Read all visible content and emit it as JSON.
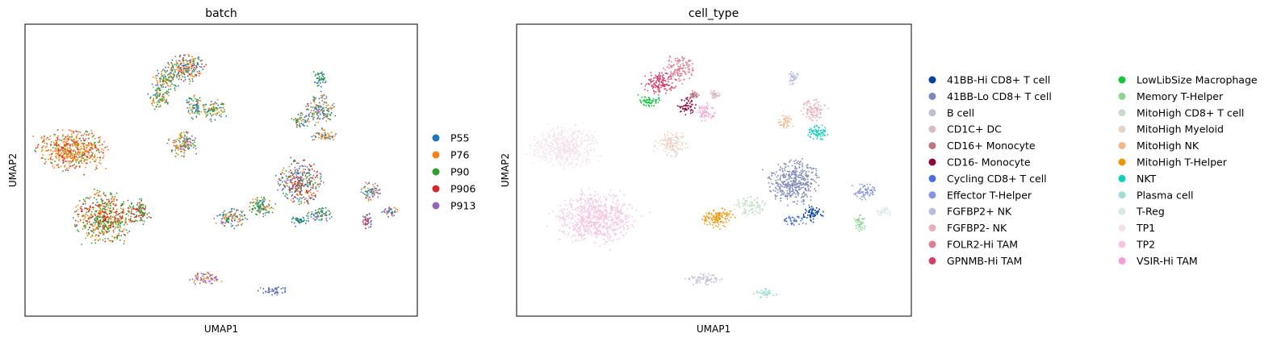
{
  "chart_data": [
    {
      "type": "scatter",
      "title": "batch",
      "xlabel": "UMAP1",
      "ylabel": "UMAP2",
      "xlim": [
        0,
        100
      ],
      "ylim": [
        0,
        100
      ],
      "grid": false,
      "ticks": false,
      "legend_placement": "right",
      "legend": [
        {
          "name": "P55",
          "color": "#1f77b4"
        },
        {
          "name": "P76",
          "color": "#ff7f0e"
        },
        {
          "name": "P90",
          "color": "#2ca02c"
        },
        {
          "name": "P906",
          "color": "#d62728"
        },
        {
          "name": "P913",
          "color": "#9467bd"
        }
      ],
      "clusters": [
        {
          "cx": 41,
          "cy": 85,
          "rx": 4.5,
          "ry": 4.5,
          "colors": [
            "#ff7f0e",
            "#2ca02c",
            "#1f77b4",
            "#d62728"
          ]
        },
        {
          "cx": 36,
          "cy": 81,
          "rx": 3.0,
          "ry": 4.0,
          "colors": [
            "#1f77b4",
            "#ff7f0e",
            "#2ca02c"
          ]
        },
        {
          "cx": 34,
          "cy": 75,
          "rx": 2.8,
          "ry": 2.8,
          "colors": [
            "#2ca02c",
            "#ff7f0e",
            "#1f77b4"
          ]
        },
        {
          "cx": 43,
          "cy": 72,
          "rx": 2.2,
          "ry": 3.5,
          "colors": [
            "#2ca02c",
            "#ff7f0e",
            "#1f77b4"
          ]
        },
        {
          "cx": 48,
          "cy": 71,
          "rx": 2.5,
          "ry": 3.5,
          "colors": [
            "#ff7f0e",
            "#2ca02c",
            "#1f77b4"
          ]
        },
        {
          "cx": 40,
          "cy": 59,
          "rx": 3.5,
          "ry": 4.0,
          "colors": [
            "#ff7f0e",
            "#2ca02c",
            "#9467bd"
          ]
        },
        {
          "cx": 12,
          "cy": 57,
          "rx": 8.5,
          "ry": 6.5,
          "colors": [
            "#ff7f0e",
            "#ff7f0e",
            "#ff7f0e",
            "#2ca02c",
            "#d62728"
          ]
        },
        {
          "cx": 20,
          "cy": 34,
          "rx": 7.0,
          "ry": 8.0,
          "colors": [
            "#2ca02c",
            "#2ca02c",
            "#ff7f0e",
            "#d62728"
          ]
        },
        {
          "cx": 29,
          "cy": 36,
          "rx": 2.5,
          "ry": 4.0,
          "colors": [
            "#d62728",
            "#2ca02c"
          ]
        },
        {
          "cx": 52,
          "cy": 34,
          "rx": 4.0,
          "ry": 3.0,
          "colors": [
            "#2ca02c",
            "#1f77b4",
            "#ff7f0e",
            "#9467bd"
          ]
        },
        {
          "cx": 60,
          "cy": 38,
          "rx": 3.5,
          "ry": 3.0,
          "colors": [
            "#1f77b4",
            "#ff7f0e",
            "#2ca02c"
          ]
        },
        {
          "cx": 70,
          "cy": 46,
          "rx": 5.0,
          "ry": 7.0,
          "colors": [
            "#1f77b4",
            "#ff7f0e",
            "#2ca02c",
            "#9467bd",
            "#d62728"
          ]
        },
        {
          "cx": 75,
          "cy": 82,
          "rx": 1.5,
          "ry": 3.0,
          "colors": [
            "#2ca02c",
            "#1f77b4"
          ]
        },
        {
          "cx": 75,
          "cy": 71,
          "rx": 3.5,
          "ry": 4.5,
          "colors": [
            "#ff7f0e",
            "#1f77b4",
            "#2ca02c",
            "#9467bd"
          ]
        },
        {
          "cx": 70,
          "cy": 67,
          "rx": 2.0,
          "ry": 2.5,
          "colors": [
            "#1f77b4",
            "#2ca02c",
            "#ff7f0e"
          ]
        },
        {
          "cx": 76,
          "cy": 62,
          "rx": 3.0,
          "ry": 2.0,
          "colors": [
            "#1f77b4",
            "#ff7f0e"
          ]
        },
        {
          "cx": 75,
          "cy": 35,
          "rx": 3.0,
          "ry": 2.5,
          "colors": [
            "#1f77b4",
            "#9467bd",
            "#2ca02c"
          ]
        },
        {
          "cx": 70,
          "cy": 33,
          "rx": 2.0,
          "ry": 1.5,
          "colors": [
            "#1f77b4",
            "#2ca02c"
          ]
        },
        {
          "cx": 88,
          "cy": 43,
          "rx": 2.5,
          "ry": 3.0,
          "colors": [
            "#1f77b4",
            "#2ca02c",
            "#9467bd",
            "#ff7f0e"
          ]
        },
        {
          "cx": 93,
          "cy": 36,
          "rx": 2.0,
          "ry": 1.5,
          "colors": [
            "#ff7f0e",
            "#1f77b4",
            "#9467bd"
          ]
        },
        {
          "cx": 87,
          "cy": 33,
          "rx": 1.2,
          "ry": 3.0,
          "colors": [
            "#d62728",
            "#9467bd",
            "#1f77b4"
          ]
        },
        {
          "cx": 46,
          "cy": 13,
          "rx": 4.0,
          "ry": 1.8,
          "colors": [
            "#9467bd",
            "#9467bd",
            "#ff7f0e"
          ]
        },
        {
          "cx": 63,
          "cy": 9,
          "rx": 3.0,
          "ry": 1.5,
          "colors": [
            "#9467bd",
            "#1f77b4"
          ]
        }
      ]
    },
    {
      "type": "scatter",
      "title": "cell_type",
      "xlabel": "UMAP1",
      "ylabel": "UMAP2",
      "xlim": [
        0,
        100
      ],
      "ylim": [
        0,
        100
      ],
      "grid": false,
      "ticks": false,
      "legend_placement": "right",
      "legend_columns": 2,
      "legend": [
        {
          "name": "41BB-Hi CD8+ T cell",
          "color": "#023fa5"
        },
        {
          "name": "41BB-Lo CD8+ T cell",
          "color": "#7d87b9"
        },
        {
          "name": "B cell",
          "color": "#bec1d4"
        },
        {
          "name": "CD1C+ DC",
          "color": "#d6bcc0"
        },
        {
          "name": "CD16+ Monocyte",
          "color": "#bb7784"
        },
        {
          "name": "CD16- Monocyte",
          "color": "#8e063b"
        },
        {
          "name": "Cycling CD8+ T cell",
          "color": "#4a6fe3"
        },
        {
          "name": "Effector T-Helper",
          "color": "#8595e1"
        },
        {
          "name": "FGFBP2+ NK",
          "color": "#b5bbe3"
        },
        {
          "name": "FGFBP2- NK",
          "color": "#e6afb9"
        },
        {
          "name": "FOLR2-Hi TAM",
          "color": "#e07b91"
        },
        {
          "name": "GPNMB-Hi TAM",
          "color": "#d33f6a"
        },
        {
          "name": "LowLibSize Macrophage",
          "color": "#11c638"
        },
        {
          "name": "Memory T-Helper",
          "color": "#8dd593"
        },
        {
          "name": "MitoHigh CD8+ T cell",
          "color": "#c6dec7"
        },
        {
          "name": "MitoHigh Myeloid",
          "color": "#ead3c6"
        },
        {
          "name": "MitoHigh NK",
          "color": "#f0b98d"
        },
        {
          "name": "MitoHigh T-Helper",
          "color": "#ef9708"
        },
        {
          "name": "NKT",
          "color": "#0fcfc0"
        },
        {
          "name": "Plasma cell",
          "color": "#9cded6"
        },
        {
          "name": "T-Reg",
          "color": "#d5eae7"
        },
        {
          "name": "TP1",
          "color": "#f3e1eb"
        },
        {
          "name": "TP2",
          "color": "#f6c4e1"
        },
        {
          "name": "VSIR-Hi TAM",
          "color": "#f79cd4"
        }
      ],
      "clusters": [
        {
          "cx": 41,
          "cy": 85,
          "rx": 3.5,
          "ry": 4.0,
          "colors": [
            "#e07b91"
          ]
        },
        {
          "cx": 36,
          "cy": 80,
          "rx": 4.0,
          "ry": 3.5,
          "colors": [
            "#d33f6a"
          ]
        },
        {
          "cx": 33,
          "cy": 74,
          "rx": 3.0,
          "ry": 2.0,
          "colors": [
            "#11c638"
          ]
        },
        {
          "cx": 43,
          "cy": 72,
          "rx": 2.0,
          "ry": 3.0,
          "colors": [
            "#8e063b"
          ]
        },
        {
          "cx": 45,
          "cy": 76,
          "rx": 1.0,
          "ry": 1.5,
          "colors": [
            "#bb7784"
          ]
        },
        {
          "cx": 50,
          "cy": 76,
          "rx": 1.2,
          "ry": 1.2,
          "colors": [
            "#d6bcc0"
          ]
        },
        {
          "cx": 48,
          "cy": 70,
          "rx": 2.0,
          "ry": 3.0,
          "colors": [
            "#f79cd4"
          ]
        },
        {
          "cx": 39,
          "cy": 59,
          "rx": 4.0,
          "ry": 4.0,
          "colors": [
            "#ead3c6"
          ]
        },
        {
          "cx": 12,
          "cy": 58,
          "rx": 8.0,
          "ry": 6.5,
          "colors": [
            "#f3e1eb"
          ]
        },
        {
          "cx": 20,
          "cy": 34,
          "rx": 9.0,
          "ry": 8.0,
          "colors": [
            "#f6c4e1"
          ]
        },
        {
          "cx": 51,
          "cy": 34,
          "rx": 4.0,
          "ry": 3.0,
          "colors": [
            "#ef9708"
          ]
        },
        {
          "cx": 59,
          "cy": 38,
          "rx": 3.5,
          "ry": 3.0,
          "colors": [
            "#c6dec7"
          ]
        },
        {
          "cx": 70,
          "cy": 46,
          "rx": 6.0,
          "ry": 7.0,
          "colors": [
            "#7d87b9"
          ]
        },
        {
          "cx": 70,
          "cy": 33,
          "rx": 2.5,
          "ry": 1.5,
          "colors": [
            "#4a6fe3"
          ]
        },
        {
          "cx": 75,
          "cy": 35,
          "rx": 2.5,
          "ry": 2.5,
          "colors": [
            "#023fa5"
          ]
        },
        {
          "cx": 70,
          "cy": 82,
          "rx": 1.2,
          "ry": 2.5,
          "colors": [
            "#b5bbe3"
          ]
        },
        {
          "cx": 75,
          "cy": 71,
          "rx": 2.8,
          "ry": 3.5,
          "colors": [
            "#e6afb9"
          ]
        },
        {
          "cx": 76,
          "cy": 63,
          "rx": 2.8,
          "ry": 2.5,
          "colors": [
            "#0fcfc0"
          ]
        },
        {
          "cx": 68,
          "cy": 67,
          "rx": 1.8,
          "ry": 2.5,
          "colors": [
            "#f0b98d"
          ]
        },
        {
          "cx": 88,
          "cy": 43,
          "rx": 2.5,
          "ry": 3.0,
          "colors": [
            "#8595e1"
          ]
        },
        {
          "cx": 93,
          "cy": 36,
          "rx": 2.0,
          "ry": 1.5,
          "colors": [
            "#d5eae7"
          ]
        },
        {
          "cx": 87,
          "cy": 32,
          "rx": 1.2,
          "ry": 2.5,
          "colors": [
            "#8dd593"
          ]
        },
        {
          "cx": 47,
          "cy": 13,
          "rx": 4.0,
          "ry": 1.8,
          "colors": [
            "#bec1d4"
          ]
        },
        {
          "cx": 63,
          "cy": 8,
          "rx": 3.0,
          "ry": 1.5,
          "colors": [
            "#9cded6"
          ]
        }
      ]
    }
  ]
}
